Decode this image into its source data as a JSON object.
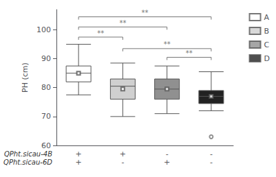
{
  "chart_data": {
    "type": "box",
    "ylabel": "PH (cm)",
    "ylim": [
      60,
      107
    ],
    "yticks": [
      60,
      70,
      80,
      90,
      100
    ],
    "grid": false,
    "legend": "right",
    "series": [
      {
        "name": "A",
        "color": "#ffffff",
        "whislo": 77.5,
        "q1": 82.0,
        "median": 85.0,
        "q3": 87.5,
        "whishi": 95.0,
        "mean": 85.0,
        "fliers": []
      },
      {
        "name": "B",
        "color": "#d0d0d0",
        "whislo": 70.0,
        "q1": 76.0,
        "median": 80.5,
        "q3": 83.0,
        "whishi": 88.5,
        "mean": 79.5,
        "fliers": []
      },
      {
        "name": "C",
        "color": "#909090",
        "whislo": 71.0,
        "q1": 76.0,
        "median": 79.5,
        "q3": 83.0,
        "whishi": 87.5,
        "mean": 79.5,
        "fliers": []
      },
      {
        "name": "D",
        "color": "#222222",
        "whislo": 72.0,
        "q1": 74.5,
        "median": 77.0,
        "q3": 79.0,
        "whishi": 85.5,
        "mean": 77.0,
        "fliers": [
          63.0
        ]
      }
    ],
    "x_label_rows": [
      {
        "label": "QPht.sicau-4B",
        "signs": [
          "+",
          "+",
          "-",
          "-"
        ]
      },
      {
        "label": "QPht.sicau-6D",
        "signs": [
          "+",
          "-",
          "+",
          "-"
        ]
      }
    ],
    "annotations": [
      {
        "from": "A",
        "to": "B",
        "y": 97.5,
        "label": "**"
      },
      {
        "from": "A",
        "to": "C",
        "y": 101.0,
        "label": "**"
      },
      {
        "from": "A",
        "to": "D",
        "y": 104.5,
        "label": "**"
      },
      {
        "from": "C",
        "to": "D",
        "y": 90.5,
        "label": "**"
      },
      {
        "from": "B",
        "to": "D",
        "y": 93.5,
        "label": "**"
      }
    ]
  }
}
